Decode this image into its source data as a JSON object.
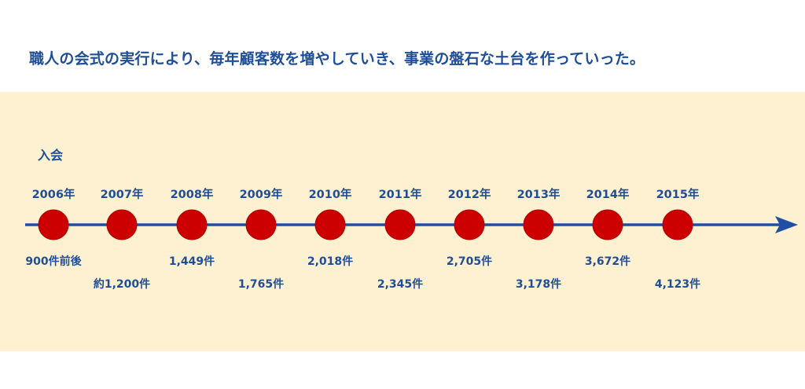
{
  "headline": "職人の会式の実行により、毎年顧客数を増やしていき、事業の盤石な土台を作っていった。",
  "entry_label": "入会",
  "colors": {
    "text": "#1f4e96",
    "band": "#fdf1d2",
    "line": "#1f4fa3",
    "dot": "#cc0000",
    "dot_edge": "#b00000"
  },
  "timeline": [
    {
      "year": "2006年",
      "count": "900件前後"
    },
    {
      "year": "2007年",
      "count": "約1,200件"
    },
    {
      "year": "2008年",
      "count": "1,449件"
    },
    {
      "year": "2009年",
      "count": "1,765件"
    },
    {
      "year": "2010年",
      "count": "2,018件"
    },
    {
      "year": "2011年",
      "count": "2,345件"
    },
    {
      "year": "2012年",
      "count": "2,705件"
    },
    {
      "year": "2013年",
      "count": "3,178件"
    },
    {
      "year": "2014年",
      "count": "3,672件"
    },
    {
      "year": "2015年",
      "count": "4,123件"
    }
  ]
}
